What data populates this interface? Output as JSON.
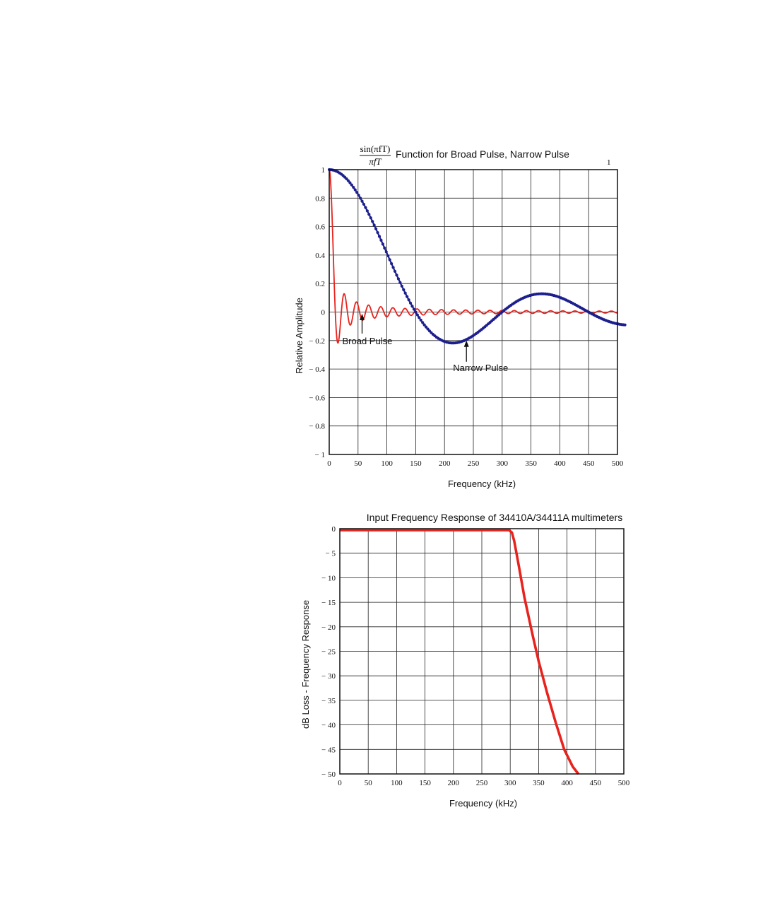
{
  "chart_data": [
    {
      "type": "line",
      "title_formula_numerator": "sin(πfT)",
      "title_formula_denominator": "πfT",
      "title": "Function for Broad Pulse, Narrow Pulse",
      "corner_mark": "1",
      "xlabel": "Frequency (kHz)",
      "ylabel": "Relative Amplitude",
      "xlim": [
        0,
        500
      ],
      "ylim": [
        -1,
        1
      ],
      "x_ticks": [
        "0",
        "50",
        "100",
        "150",
        "200",
        "250",
        "300",
        "350",
        "400",
        "450",
        "500"
      ],
      "y_ticks": [
        "1",
        "0.8",
        "0.6",
        "0.4",
        "0.2",
        "0",
        "− 0.2",
        "− 0.4",
        "− 0.6",
        "− 0.8",
        "− 1"
      ],
      "grid": true,
      "annotations": [
        {
          "text": "Broad Pulse",
          "x": 57,
          "y": -0.012
        },
        {
          "text": "Narrow Pulse",
          "x": 238,
          "y": -0.2
        }
      ],
      "series": [
        {
          "color": "#e8231e",
          "style": "solid",
          "formula": "sinc(f*T)",
          "T_us": 95,
          "x_range": [
            0,
            500
          ]
        },
        {
          "color": "#1c1f8c",
          "style": "dotted-thick",
          "formula": "sinc(f*T)",
          "T_us": 6.67,
          "x_range": [
            0,
            513
          ]
        }
      ]
    },
    {
      "type": "line",
      "title": "Input Frequency Response of 34410A/34411A multimeters",
      "xlabel": "Frequency (kHz)",
      "ylabel": "dB Loss - Frequency Response",
      "xlim": [
        0,
        500
      ],
      "ylim": [
        -50,
        0
      ],
      "x_ticks": [
        "0",
        "50",
        "100",
        "150",
        "200",
        "250",
        "300",
        "350",
        "400",
        "450",
        "500"
      ],
      "y_ticks": [
        "0",
        "− 5",
        "− 10",
        "− 15",
        "− 20",
        "− 25",
        "− 30",
        "− 35",
        "− 40",
        "− 45",
        "− 50"
      ],
      "grid": true,
      "series": [
        {
          "color": "#e8231e",
          "x": [
            0,
            50,
            100,
            150,
            200,
            250,
            298,
            303,
            307,
            315,
            325,
            340,
            350,
            365,
            380,
            395,
            410,
            420
          ],
          "y": [
            -0.3,
            -0.3,
            -0.3,
            -0.3,
            -0.3,
            -0.3,
            -0.3,
            -0.8,
            -2.5,
            -7.5,
            -14,
            -22,
            -27,
            -33.5,
            -39.5,
            -45,
            -48.5,
            -50
          ]
        }
      ]
    }
  ]
}
